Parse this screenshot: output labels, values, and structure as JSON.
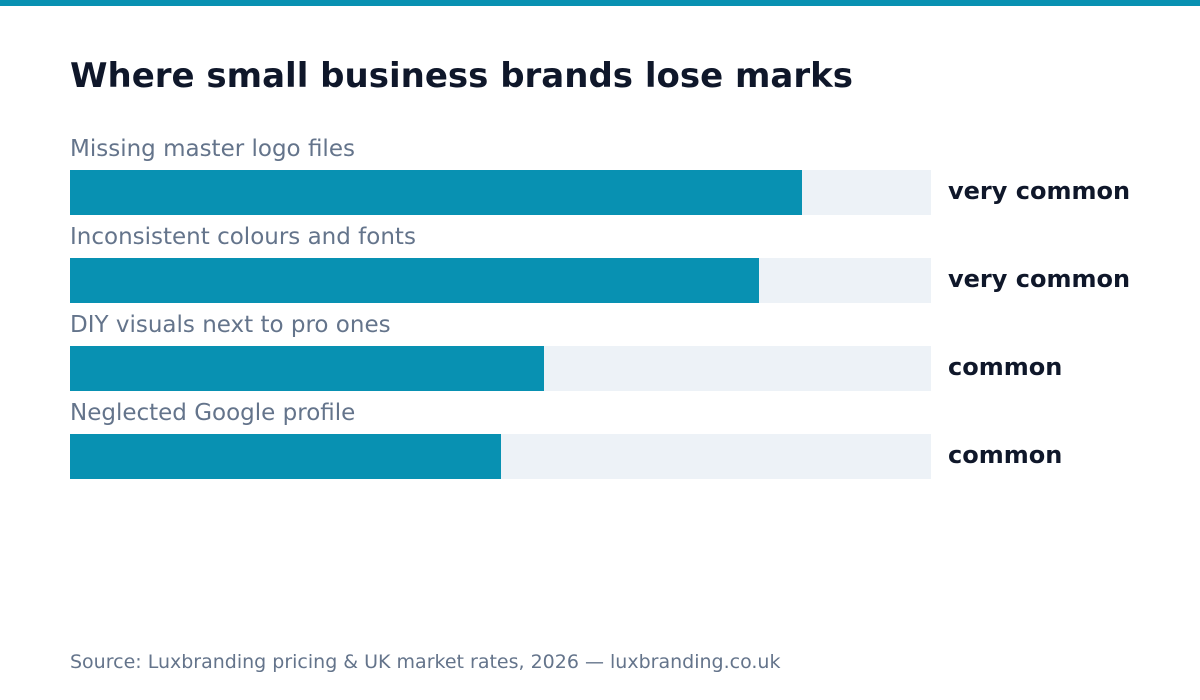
{
  "colors": {
    "accent": "#0891b2",
    "track": "#edf2f7",
    "title": "#0f172a",
    "label": "#64748b"
  },
  "source": "Source: Luxbranding pricing & UK market rates, 2026 — luxbranding.co.uk",
  "chart_data": {
    "type": "bar",
    "orientation": "horizontal",
    "title": "Where small business brands lose marks",
    "xlabel": "",
    "ylabel": "",
    "xlim": [
      0,
      1
    ],
    "grid": false,
    "legend": "none",
    "categories": [
      "Missing master logo files",
      "Inconsistent colours and fonts",
      "DIY visuals next to pro ones",
      "Neglected Google profile"
    ],
    "values": [
      0.85,
      0.8,
      0.55,
      0.5
    ],
    "value_labels": [
      "very common",
      "very common",
      "common",
      "common"
    ]
  }
}
